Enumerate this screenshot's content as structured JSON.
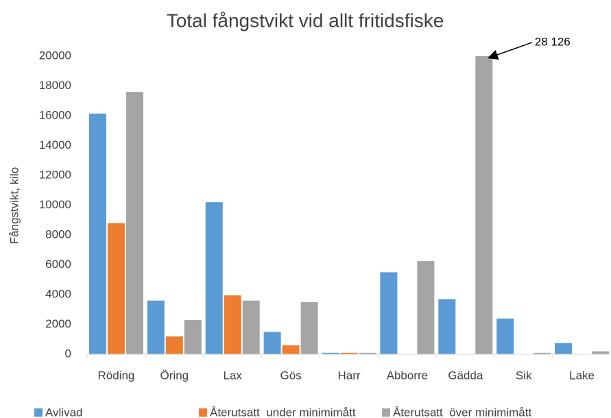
{
  "chart_data": {
    "type": "bar",
    "title": "Total fångstvikt vid allt fritidsfiske",
    "y_label": "Fångstvikt, kilo",
    "categories": [
      "Röding",
      "Öring",
      "Lax",
      "Gös",
      "Harr",
      "Abborre",
      "Gädda",
      "Sik",
      "Lake"
    ],
    "series": [
      {
        "name": "Avlivad",
        "color": "#5b9bd5",
        "values": [
          16150,
          3600,
          10200,
          1500,
          100,
          5500,
          3700,
          2400,
          750
        ]
      },
      {
        "name": "Återutsatt  under minimimått",
        "color": "#ed7d31",
        "values": [
          8800,
          1200,
          3950,
          600,
          100,
          0,
          0,
          0,
          0
        ]
      },
      {
        "name": "Återutsatt  över minimimått",
        "color": "#a5a5a5",
        "values": [
          17600,
          2300,
          3600,
          3500,
          100,
          6250,
          28126,
          100,
          200
        ],
        "value_labels": [
          null,
          null,
          null,
          null,
          null,
          null,
          "28 126",
          null,
          null
        ]
      }
    ],
    "ylim": [
      0,
      20000
    ],
    "yticks": [
      0,
      2000,
      4000,
      6000,
      8000,
      10000,
      12000,
      14000,
      16000,
      18000,
      20000
    ],
    "grid": false,
    "legend": "bottom"
  }
}
